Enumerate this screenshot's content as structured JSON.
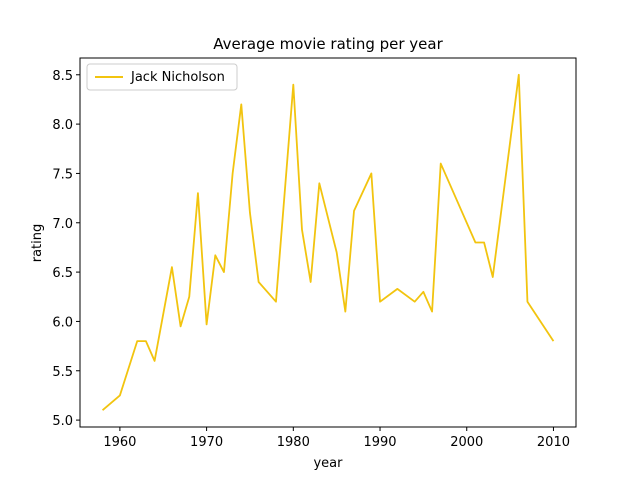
{
  "chart_data": {
    "type": "line",
    "title": "Average movie rating per year",
    "xlabel": "year",
    "ylabel": "rating",
    "xlim": [
      1955.4,
      2012.6
    ],
    "ylim": [
      4.93,
      8.67
    ],
    "xticks": [
      1960,
      1970,
      1980,
      1990,
      2000,
      2010
    ],
    "yticks": [
      5.0,
      5.5,
      6.0,
      6.5,
      7.0,
      7.5,
      8.0,
      8.5
    ],
    "grid": false,
    "legend_position": "upper-left",
    "series": [
      {
        "name": "Jack Nicholson",
        "color": "#f2c40f",
        "x": [
          1958,
          1960,
          1962,
          1963,
          1964,
          1966,
          1967,
          1968,
          1969,
          1970,
          1971,
          1972,
          1973,
          1974,
          1975,
          1976,
          1978,
          1980,
          1981,
          1982,
          1983,
          1985,
          1986,
          1987,
          1989,
          1990,
          1992,
          1994,
          1995,
          1996,
          1997,
          2001,
          2002,
          2003,
          2006,
          2007,
          2010
        ],
        "y": [
          5.1,
          5.25,
          5.8,
          5.8,
          5.6,
          6.55,
          5.95,
          6.25,
          7.3,
          5.97,
          6.67,
          6.5,
          7.5,
          8.2,
          7.1,
          6.4,
          6.2,
          8.4,
          6.93,
          6.4,
          7.4,
          6.7,
          6.1,
          7.12,
          7.5,
          6.2,
          6.33,
          6.2,
          6.3,
          6.1,
          7.6,
          6.8,
          6.8,
          6.45,
          8.5,
          6.2,
          5.8
        ]
      }
    ]
  }
}
